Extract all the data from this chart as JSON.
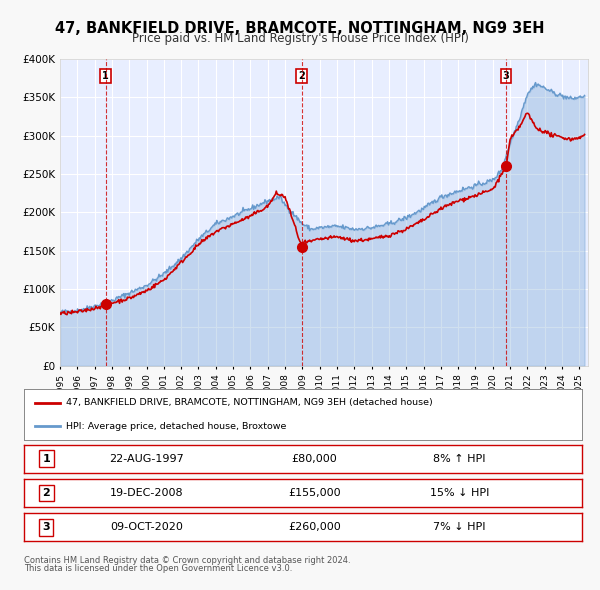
{
  "title": "47, BANKFIELD DRIVE, BRAMCOTE, NOTTINGHAM, NG9 3EH",
  "subtitle": "Price paid vs. HM Land Registry's House Price Index (HPI)",
  "legend_line1": "47, BANKFIELD DRIVE, BRAMCOTE, NOTTINGHAM, NG9 3EH (detached house)",
  "legend_line2": "HPI: Average price, detached house, Broxtowe",
  "footer1": "Contains HM Land Registry data © Crown copyright and database right 2024.",
  "footer2": "This data is licensed under the Open Government Licence v3.0.",
  "sale_color": "#cc0000",
  "hpi_color": "#6699cc",
  "background_color": "#f0f4ff",
  "plot_bg_color": "#e8eeff",
  "grid_color": "#ffffff",
  "sales": [
    {
      "date_num": 1997.644,
      "price": 80000,
      "label": "1",
      "date_str": "22-AUG-1997",
      "price_str": "£80,000",
      "info": "8% ↑ HPI"
    },
    {
      "date_num": 2008.967,
      "price": 155000,
      "label": "2",
      "date_str": "19-DEC-2008",
      "price_str": "£155,000",
      "info": "15% ↓ HPI"
    },
    {
      "date_num": 2020.772,
      "price": 260000,
      "label": "3",
      "date_str": "09-OCT-2020",
      "price_str": "£260,000",
      "info": "7% ↓ HPI"
    }
  ],
  "xmin": 1995.0,
  "xmax": 2025.5,
  "ymin": 0,
  "ymax": 400000,
  "yticks": [
    0,
    50000,
    100000,
    150000,
    200000,
    250000,
    300000,
    350000,
    400000
  ],
  "ytick_labels": [
    "£0",
    "£50K",
    "£100K",
    "£150K",
    "£200K",
    "£250K",
    "£300K",
    "£350K",
    "£400K"
  ]
}
